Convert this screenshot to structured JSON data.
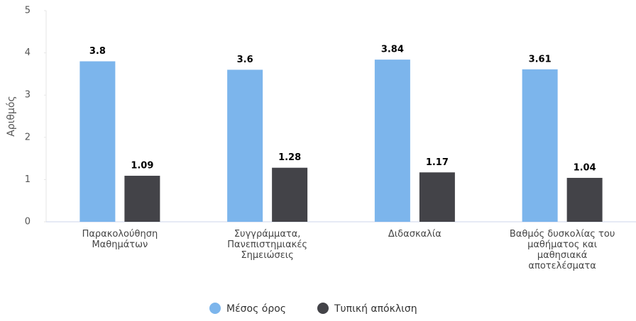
{
  "chart_data": {
    "type": "bar",
    "categories": [
      "Παρακολούθηση Μαθημάτων",
      "Συγγράμματα, Πανεπιστημιακές Σημειώσεις",
      "Διδασκαλία",
      "Βαθμός δυσκολίας του μαθήματος και μαθησιακά αποτελέσματα"
    ],
    "series": [
      {
        "name": "Μέσος όρος",
        "color": "#7cb5ec",
        "values": [
          3.8,
          3.6,
          3.84,
          3.61
        ]
      },
      {
        "name": "Τυπική απόκλιση",
        "color": "#434348",
        "values": [
          1.09,
          1.28,
          1.17,
          1.04
        ]
      }
    ],
    "ylabel": "Αριθμός",
    "ylim": [
      0,
      5
    ],
    "yticks": [
      0,
      1,
      2,
      3,
      4,
      5
    ],
    "legend": "bottom"
  }
}
